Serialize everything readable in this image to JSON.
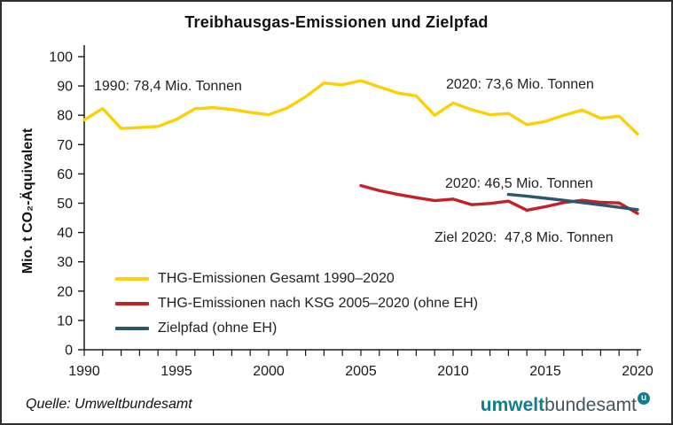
{
  "chart_data": {
    "type": "line",
    "title": "Treibhausgas-Emissionen und Zielpfad",
    "ylabel": "Mio. t CO₂-Äquivalent",
    "xlabel": "",
    "ylim": [
      0,
      100
    ],
    "xlim": [
      1990,
      2020
    ],
    "yticks": [
      0,
      10,
      20,
      30,
      40,
      50,
      60,
      70,
      80,
      90,
      100
    ],
    "xticks": [
      1990,
      1995,
      2000,
      2005,
      2010,
      2015,
      2020
    ],
    "minor_xticks_every_year": true,
    "grid": false,
    "legend_position": "lower-left",
    "series": [
      {
        "name": "THG-Emissionen Gesamt 1990–2020",
        "color": "#FCD005",
        "x": [
          1990,
          1991,
          1992,
          1993,
          1994,
          1995,
          1996,
          1997,
          1998,
          1999,
          2000,
          2001,
          2002,
          2003,
          2004,
          2005,
          2006,
          2007,
          2008,
          2009,
          2010,
          2011,
          2012,
          2013,
          2014,
          2015,
          2016,
          2017,
          2018,
          2019,
          2020
        ],
        "values": [
          78.4,
          82.3,
          75.5,
          75.8,
          76.2,
          78.6,
          82.2,
          82.6,
          82.0,
          81.0,
          80.2,
          82.5,
          86.3,
          91.0,
          90.4,
          91.8,
          89.7,
          87.6,
          86.6,
          80.0,
          84.2,
          81.9,
          80.2,
          80.6,
          76.8,
          77.9,
          80.0,
          81.8,
          79.0,
          79.7,
          73.6
        ]
      },
      {
        "name": "THG-Emissionen nach KSG 2005–2020 (ohne EH)",
        "color": "#C4202A",
        "x": [
          2005,
          2006,
          2007,
          2008,
          2009,
          2010,
          2011,
          2012,
          2013,
          2014,
          2015,
          2016,
          2017,
          2018,
          2019,
          2020
        ],
        "values": [
          56.0,
          54.3,
          53.0,
          51.9,
          50.9,
          51.4,
          49.5,
          49.9,
          50.7,
          47.6,
          48.8,
          50.2,
          51.0,
          50.3,
          50.1,
          46.5
        ]
      },
      {
        "name": "Zielpfad (ohne EH)",
        "color": "#2B566B",
        "x": [
          2013,
          2014,
          2015,
          2016,
          2017,
          2018,
          2019,
          2020
        ],
        "values": [
          53.0,
          52.4,
          51.7,
          51.0,
          50.2,
          49.4,
          48.6,
          47.8
        ]
      }
    ],
    "annotations": [
      {
        "text": "1990: 78,4 Mio. Tonnen"
      },
      {
        "text": "2020: 73,6 Mio. Tonnen"
      },
      {
        "text": "2020: 46,5 Mio. Tonnen"
      },
      {
        "text": "Ziel 2020:  47,8 Mio. Tonnen"
      }
    ]
  },
  "footer": {
    "source": "Quelle: Umweltbundesamt",
    "logo": {
      "part1": "umwelt",
      "part2": "bundesamt",
      "badge": "u",
      "teal": "#0E808D",
      "gray": "#44545C"
    }
  }
}
